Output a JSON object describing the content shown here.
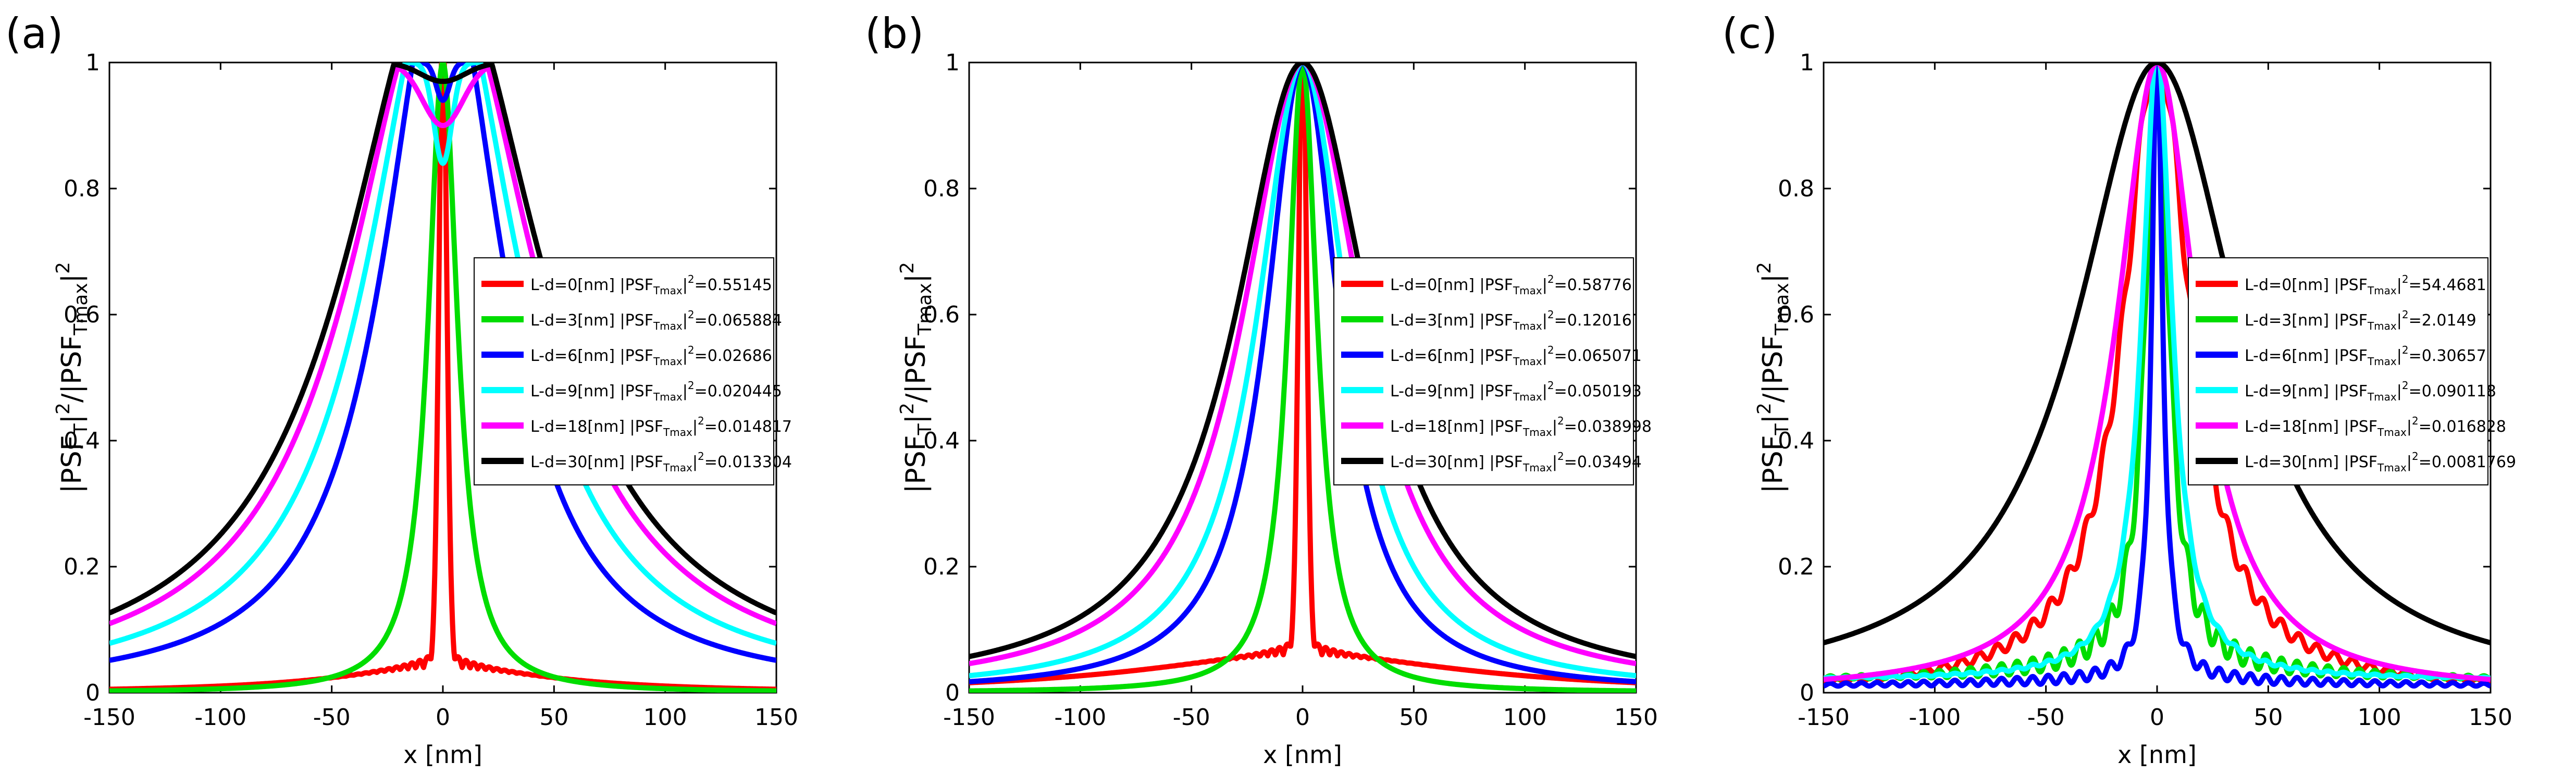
{
  "chart_data": [
    {
      "type": "line",
      "panel_label": "(a)",
      "title": "",
      "xlabel": "x [nm]",
      "ylabel": "|PSF",
      "xlim": [
        -150,
        150
      ],
      "ylim": [
        0,
        1
      ],
      "xticks": [
        "-150",
        "-100",
        "-50",
        "0",
        "50",
        "100",
        "150"
      ],
      "yticks": [
        "0",
        "0.2",
        "0.4",
        "0.6",
        "0.8",
        "1"
      ],
      "legend_position": "center-right",
      "series": [
        {
          "name": "L-d=0[nm]",
          "norm": "0.55145",
          "color": "#ff0000",
          "kind": "peak",
          "params": {
            "w": 1.8,
            "base": 0.04,
            "bw": 60,
            "ripple": 0.03
          }
        },
        {
          "name": "L-d=3[nm]",
          "norm": "0.065884",
          "color": "#00dd00",
          "kind": "lorentz",
          "params": {
            "w": 8
          }
        },
        {
          "name": "L-d=6[nm]",
          "norm": "0.02686",
          "color": "#0000ff",
          "kind": "dip",
          "params": {
            "w": 32,
            "dip": 0.06,
            "dw": 3
          }
        },
        {
          "name": "L-d=9[nm]",
          "norm": "0.020445",
          "color": "#00ffff",
          "kind": "dip",
          "params": {
            "w": 40,
            "dip": 0.16,
            "dw": 4
          }
        },
        {
          "name": "L-d=18[nm]",
          "norm": "0.014817",
          "color": "#ff00ff",
          "kind": "dip",
          "params": {
            "w": 48,
            "dip": 0.1,
            "dw": 9
          }
        },
        {
          "name": "L-d=30[nm]",
          "norm": "0.013304",
          "color": "#000000",
          "kind": "dip",
          "params": {
            "w": 52,
            "dip": 0.03,
            "dw": 10
          }
        }
      ]
    },
    {
      "type": "line",
      "panel_label": "(b)",
      "title": "",
      "xlabel": "x [nm]",
      "ylabel": "|PSF",
      "xlim": [
        -150,
        150
      ],
      "ylim": [
        0,
        1
      ],
      "xticks": [
        "-150",
        "-100",
        "-50",
        "0",
        "50",
        "100",
        "150"
      ],
      "yticks": [
        "0",
        "0.2",
        "0.4",
        "0.6",
        "0.8",
        "1"
      ],
      "legend_position": "center-right",
      "series": [
        {
          "name": "L-d=0[nm]",
          "norm": "0.58776",
          "color": "#ff0000",
          "kind": "peak",
          "params": {
            "w": 1.8,
            "base": 0.06,
            "bw": 90,
            "ripple": 0.03
          }
        },
        {
          "name": "L-d=3[nm]",
          "norm": "0.12016",
          "color": "#00dd00",
          "kind": "lorentz",
          "params": {
            "w": 8
          }
        },
        {
          "name": "L-d=6[nm]",
          "norm": "0.065071",
          "color": "#0000ff",
          "kind": "lorentz",
          "params": {
            "w": 20
          }
        },
        {
          "name": "L-d=9[nm]",
          "norm": "0.050193",
          "color": "#00ffff",
          "kind": "lorentz",
          "params": {
            "w": 25
          }
        },
        {
          "name": "L-d=18[nm]",
          "norm": "0.038998",
          "color": "#ff00ff",
          "kind": "lorentz",
          "params": {
            "w": 33
          }
        },
        {
          "name": "L-d=30[nm]",
          "norm": "0.03494",
          "color": "#000000",
          "kind": "lorentz",
          "params": {
            "w": 37
          }
        }
      ]
    },
    {
      "type": "line",
      "panel_label": "(c)",
      "title": "",
      "xlabel": "x [nm]",
      "ylabel": "|PSF",
      "xlim": [
        -150,
        150
      ],
      "ylim": [
        0,
        1
      ],
      "xticks": [
        "-150",
        "-100",
        "-50",
        "0",
        "50",
        "100",
        "150"
      ],
      "yticks": [
        "0",
        "0.2",
        "0.4",
        "0.6",
        "0.8",
        "1"
      ],
      "legend_position": "center-right",
      "series": [
        {
          "name": "L-d=0[nm]",
          "norm": "54.4681",
          "color": "#ff0000",
          "kind": "ripple",
          "params": {
            "w": 18,
            "base": 0.0,
            "amp": 0.025,
            "period": 8,
            "decay": 70
          }
        },
        {
          "name": "L-d=3[nm]",
          "norm": "2.0149",
          "color": "#00dd00",
          "kind": "ripple",
          "params": {
            "w": 6,
            "base": 0.02,
            "amp": 0.03,
            "period": 7,
            "decay": 60
          }
        },
        {
          "name": "L-d=6[nm]",
          "norm": "0.30657",
          "color": "#0000ff",
          "kind": "ripple",
          "params": {
            "w": 3,
            "base": 0.01,
            "amp": 0.012,
            "period": 7,
            "decay": 90
          }
        },
        {
          "name": "L-d=9[nm]",
          "norm": "0.090118",
          "color": "#00ffff",
          "kind": "ripple",
          "params": {
            "w": 8,
            "base": 0.02,
            "amp": 0.005,
            "period": 7,
            "decay": 80
          }
        },
        {
          "name": "L-d=18[nm]",
          "norm": "0.016828",
          "color": "#ff00ff",
          "kind": "lorentz",
          "params": {
            "w": 22
          }
        },
        {
          "name": "L-d=30[nm]",
          "norm": "0.0081769",
          "color": "#000000",
          "kind": "lorentz",
          "params": {
            "w": 44
          }
        }
      ]
    }
  ]
}
